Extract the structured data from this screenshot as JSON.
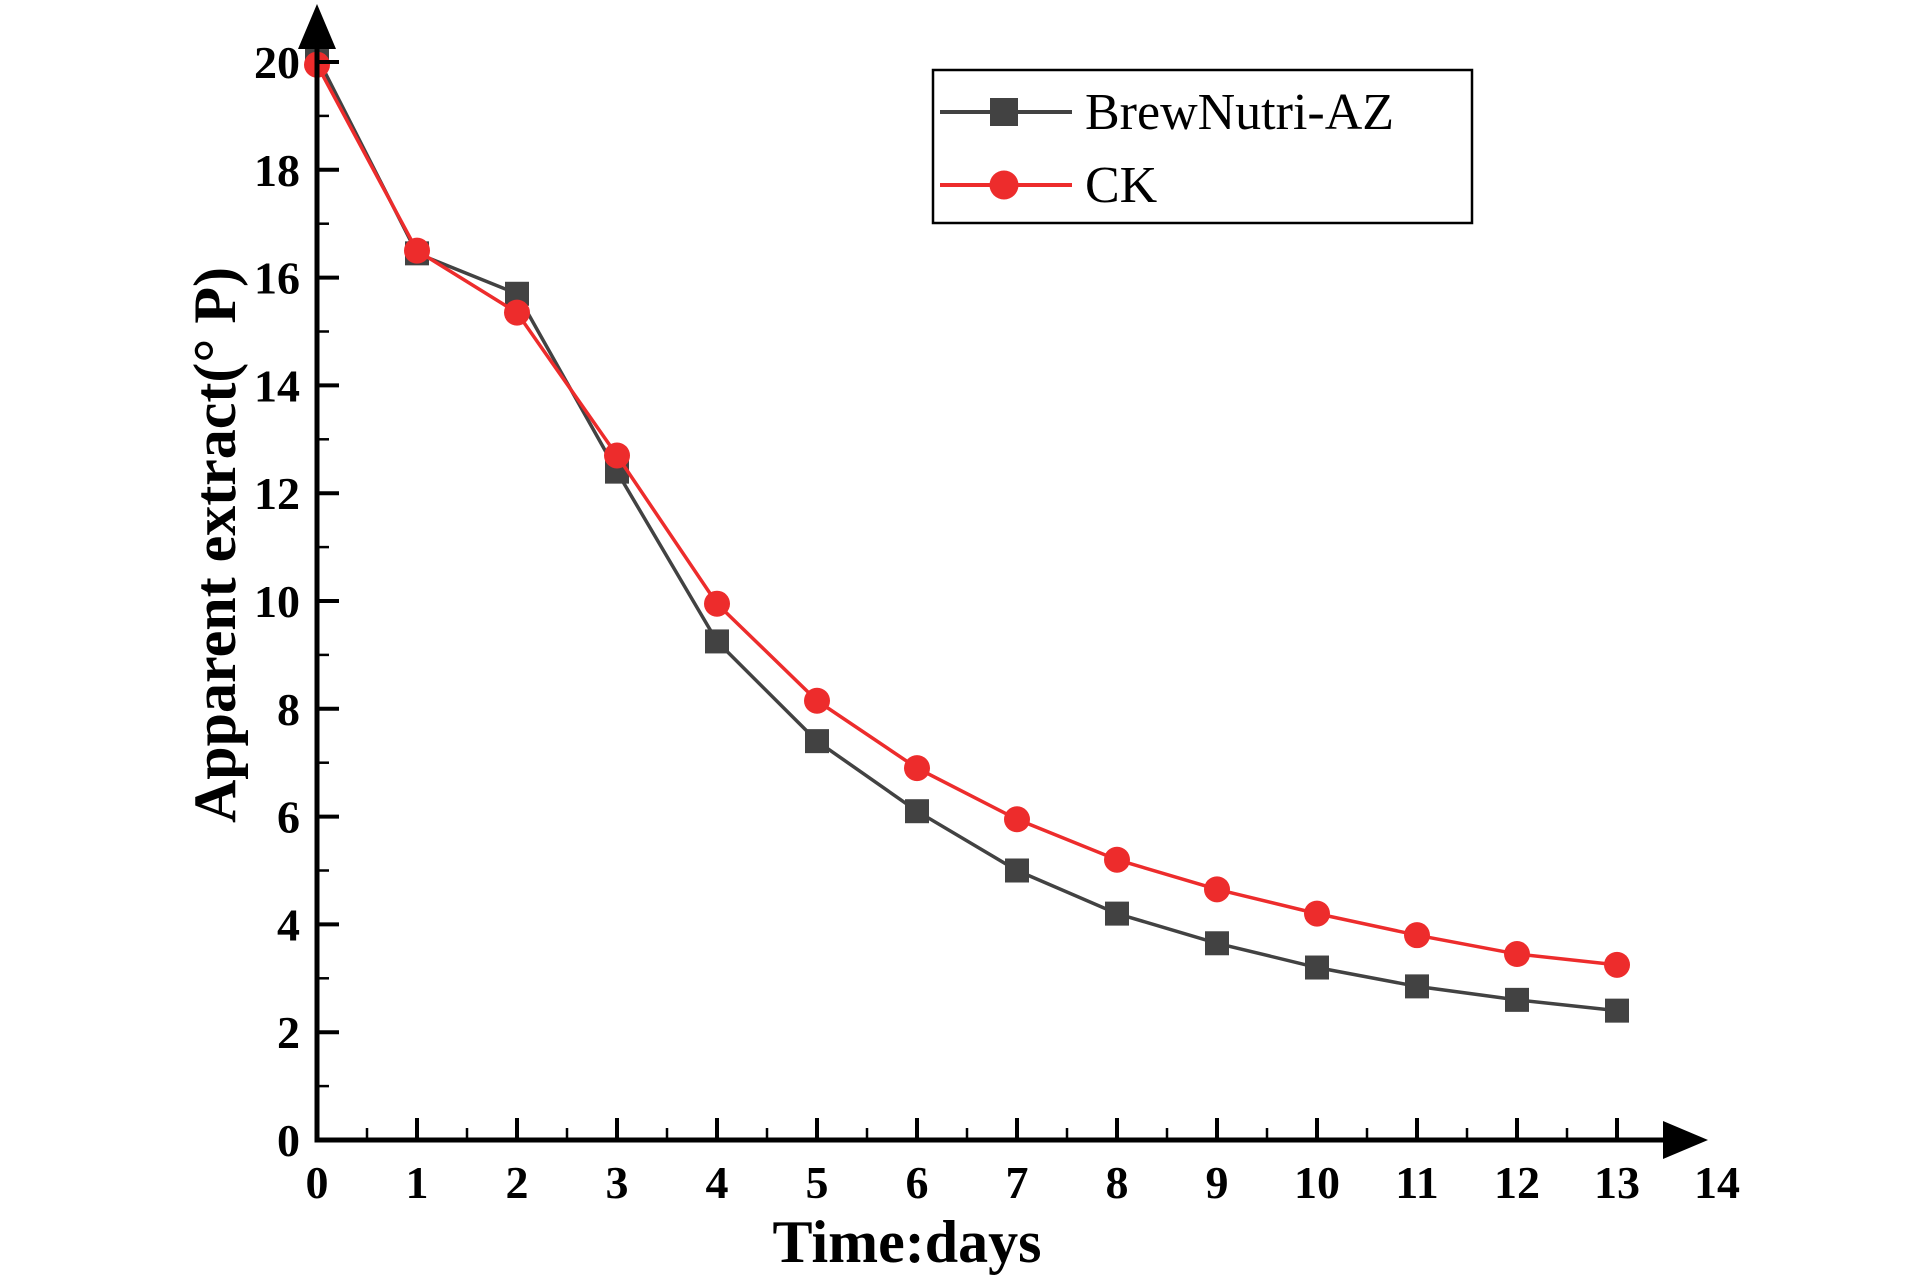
{
  "canvas": {
    "background": "#ffffff",
    "axis_color": "#000000"
  },
  "chart_data": {
    "type": "line",
    "title": "",
    "xlabel": "Time:days",
    "ylabel": "Apparent extract(° P)",
    "x": [
      0,
      1,
      2,
      3,
      4,
      5,
      6,
      7,
      8,
      9,
      10,
      11,
      12,
      13
    ],
    "series": [
      {
        "name": "BrewNutri-AZ",
        "color": "#424242",
        "marker": "square",
        "values": [
          20.1,
          16.45,
          15.7,
          12.4,
          9.25,
          7.4,
          6.1,
          5.0,
          4.2,
          3.65,
          3.2,
          2.85,
          2.6,
          2.4
        ]
      },
      {
        "name": "CK",
        "color": "#ed2c2c",
        "marker": "circle",
        "values": [
          19.95,
          16.5,
          15.35,
          12.7,
          9.95,
          8.15,
          6.9,
          5.95,
          5.2,
          4.65,
          4.2,
          3.8,
          3.45,
          3.25
        ]
      }
    ],
    "xlim": [
      0,
      14
    ],
    "ylim": [
      0,
      20
    ],
    "x_tick_labels": [
      "0",
      "1",
      "2",
      "3",
      "4",
      "5",
      "6",
      "7",
      "8",
      "9",
      "10",
      "11",
      "12",
      "13",
      "14"
    ],
    "y_tick_labels": [
      "0",
      "2",
      "4",
      "6",
      "8",
      "10",
      "12",
      "14",
      "16",
      "18",
      "20"
    ],
    "x_minor_step": 0.5,
    "y_minor_step": 1,
    "grid": false,
    "axis_arrows": true,
    "legend_position": "top-right",
    "legend_border_color": "#000000",
    "legend_background": "#ffffff"
  }
}
